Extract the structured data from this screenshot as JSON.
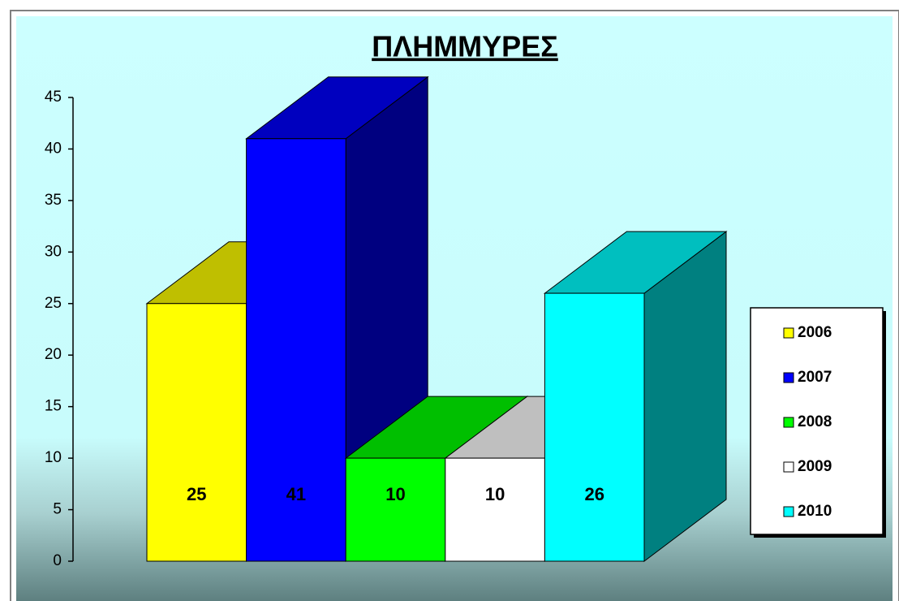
{
  "chart_data": {
    "type": "bar3d",
    "title": "ΠΛΗΜΜΥΡΕΣ",
    "series": [
      {
        "name": "2006",
        "color": "#ffff00",
        "values": [
          25
        ]
      },
      {
        "name": "2007",
        "color": "#0000ff",
        "values": [
          41
        ]
      },
      {
        "name": "2008",
        "color": "#00ff00",
        "values": [
          10
        ]
      },
      {
        "name": "2009",
        "color": "#ffffff",
        "values": [
          10
        ]
      },
      {
        "name": "2010",
        "color": "#00ffff",
        "values": [
          26
        ]
      }
    ],
    "ylim": [
      0,
      45
    ],
    "yticks": [
      0,
      5,
      10,
      15,
      20,
      25,
      30,
      35,
      40,
      45
    ],
    "legend": "right"
  }
}
